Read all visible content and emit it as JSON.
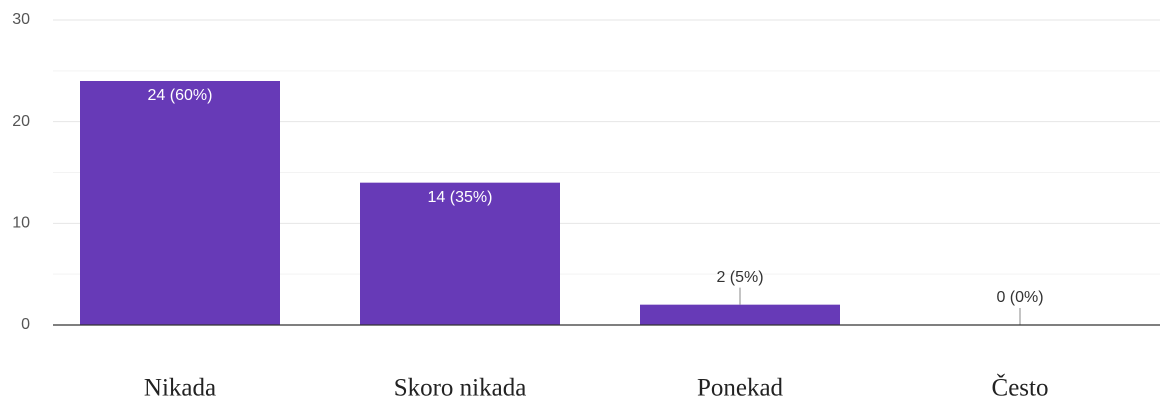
{
  "chart_data": {
    "type": "bar",
    "categories": [
      "Nikada",
      "Skoro nikada",
      "Ponekad",
      "Često"
    ],
    "values": [
      24,
      14,
      2,
      0
    ],
    "value_labels": [
      "24 (60%)",
      "14 (35%)",
      "2 (5%)",
      "0 (0%)"
    ],
    "color": "#673ab7",
    "ylim": [
      0,
      30
    ],
    "yticks": [
      0,
      10,
      20,
      30
    ],
    "minor_yticks": [
      5,
      15,
      25
    ],
    "grid": true
  }
}
